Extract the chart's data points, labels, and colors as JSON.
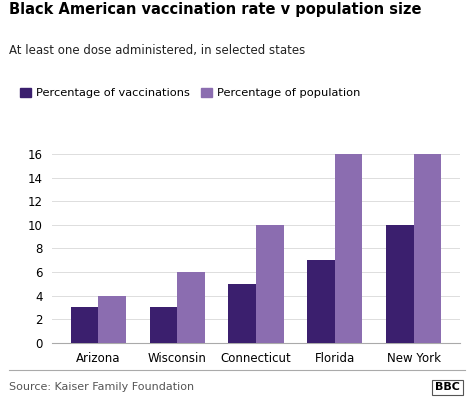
{
  "title": "Black American vaccination rate v population size",
  "subtitle": "At least one dose administered, in selected states",
  "categories": [
    "Arizona",
    "Wisconsin",
    "Connecticut",
    "Florida",
    "New York"
  ],
  "vaccinations": [
    3,
    3,
    5,
    7,
    10
  ],
  "population": [
    4,
    6,
    10,
    16,
    16
  ],
  "color_vaccinations": "#3b1f6e",
  "color_population": "#8b6db0",
  "legend_label_1": "Percentage of vaccinations",
  "legend_label_2": "Percentage of population",
  "ylim": [
    0,
    17
  ],
  "yticks": [
    0,
    2,
    4,
    6,
    8,
    10,
    12,
    14,
    16
  ],
  "source_text": "Source: Kaiser Family Foundation",
  "bbc_text": "BBC",
  "background_color": "#ffffff",
  "bar_width": 0.35
}
